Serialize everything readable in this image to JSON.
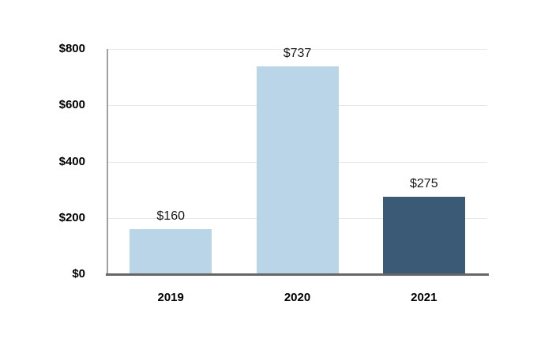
{
  "chart_data": {
    "type": "bar",
    "title": "",
    "categories": [
      "2019",
      "2020",
      "2021"
    ],
    "values": [
      160,
      737,
      275
    ],
    "value_labels": [
      "$160",
      "$737",
      "$275"
    ],
    "bar_colors": [
      "light",
      "light",
      "dark"
    ],
    "xlabel": "",
    "ylabel": "",
    "ylim": [
      0,
      800
    ],
    "yticks": [
      0,
      200,
      400,
      600,
      800
    ],
    "ytick_labels": [
      "$0",
      "$200",
      "$400",
      "$600",
      "$800"
    ],
    "grid": "horizontal",
    "legend_position": "none"
  },
  "colors": {
    "bar_light_blue": "#BAD5E8",
    "bar_dark_blue": "#3B5A76",
    "gridline": "#E8E8E8",
    "y_axis_line": "#A0A0A0",
    "x_axis_line": "#666666",
    "text": "#000000",
    "background": "#FFFFFF"
  }
}
